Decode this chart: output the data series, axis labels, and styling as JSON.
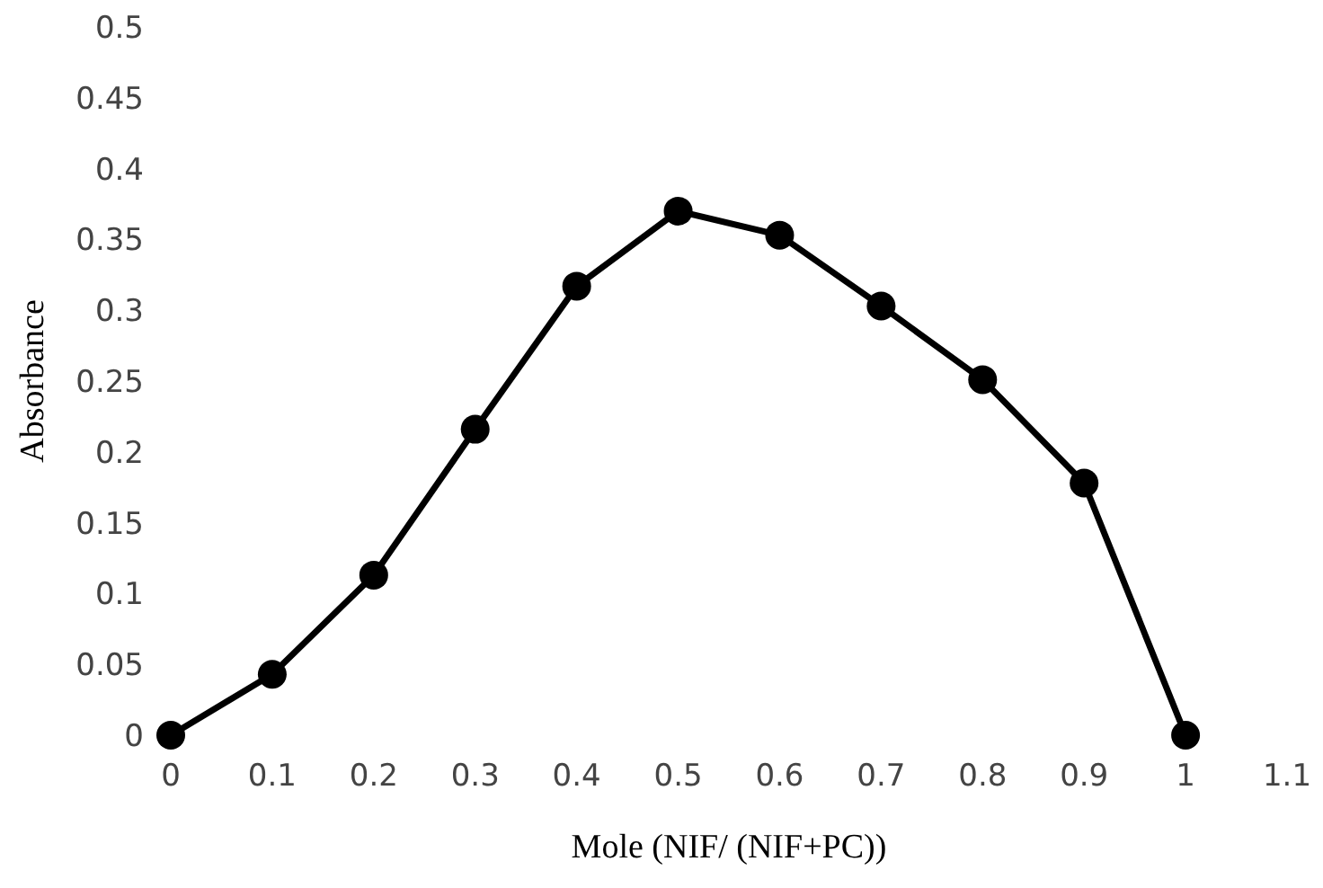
{
  "chart_data": {
    "type": "line",
    "xlabel": "Mole (NIF/ (NIF+PC))",
    "ylabel": "Absorbance",
    "x": [
      0,
      0.1,
      0.2,
      0.3,
      0.4,
      0.5,
      0.6,
      0.7,
      0.8,
      0.9,
      1
    ],
    "series": [
      {
        "color": "#000000",
        "values": [
          0,
          0.043,
          0.113,
          0.216,
          0.317,
          0.37,
          0.353,
          0.303,
          0.251,
          0.178,
          0
        ]
      }
    ],
    "xlim": [
      0,
      1.1
    ],
    "xticks": [
      0,
      0.1,
      0.2,
      0.3,
      0.4,
      0.5,
      0.6,
      0.7,
      0.8,
      0.9,
      1,
      1.1
    ],
    "ylim": [
      0,
      0.5
    ],
    "yticks": [
      0,
      0.05,
      0.1,
      0.15,
      0.2,
      0.25,
      0.3,
      0.35,
      0.4,
      0.45,
      0.5
    ],
    "grid": false,
    "legend": false,
    "marker": "circle",
    "line_style": "solid"
  }
}
